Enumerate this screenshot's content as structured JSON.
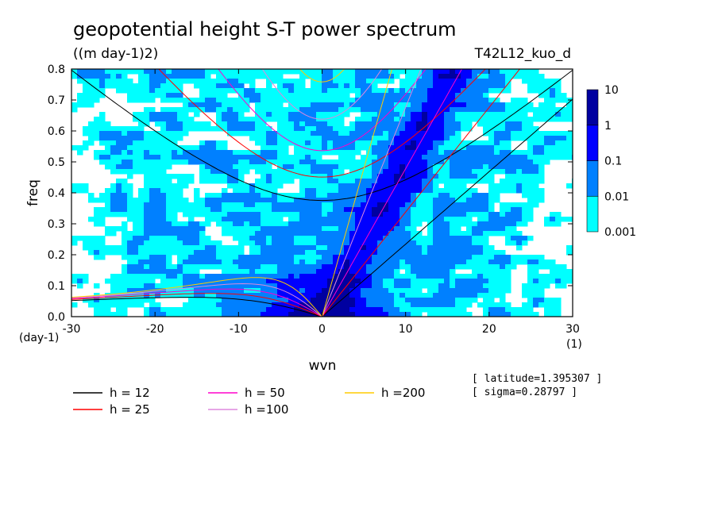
{
  "chart_data": {
    "type": "heatmap",
    "title": "geopotential height S-T power spectrum",
    "subtitle": "((m day-1)2)",
    "run_name": "T42L12_kuo_d",
    "xlabel": "wvn",
    "ylabel": "freq",
    "x_unit": "(1)",
    "y_unit": "(day-1)",
    "xlim": [
      -30,
      30
    ],
    "ylim": [
      0,
      0.8
    ],
    "x_ticks": [
      "-30",
      "-20",
      "-10",
      "0",
      "10",
      "20",
      "30"
    ],
    "y_ticks": [
      "0.0",
      "0.1",
      "0.2",
      "0.3",
      "0.4",
      "0.5",
      "0.6",
      "0.7",
      "0.8"
    ],
    "colorbar": {
      "labels": [
        "0.001",
        "0.01",
        "0.1",
        "1",
        "10"
      ],
      "colors": [
        "#00ffff",
        "#0080ff",
        "#0000ff",
        "#0000a0",
        "#6000c0"
      ]
    },
    "legend": [
      {
        "label": "h = 12",
        "color": "#000000"
      },
      {
        "label": "h = 25",
        "color": "#ff0000"
      },
      {
        "label": "h = 50",
        "color": "#ff00cc"
      },
      {
        "label": "h =100",
        "color": "#dd88dd"
      },
      {
        "label": "h =200",
        "color": "#ffcc00"
      }
    ],
    "info": [
      "[ latitude=1.395307 ]",
      "[ sigma=0.28797 ]"
    ]
  }
}
